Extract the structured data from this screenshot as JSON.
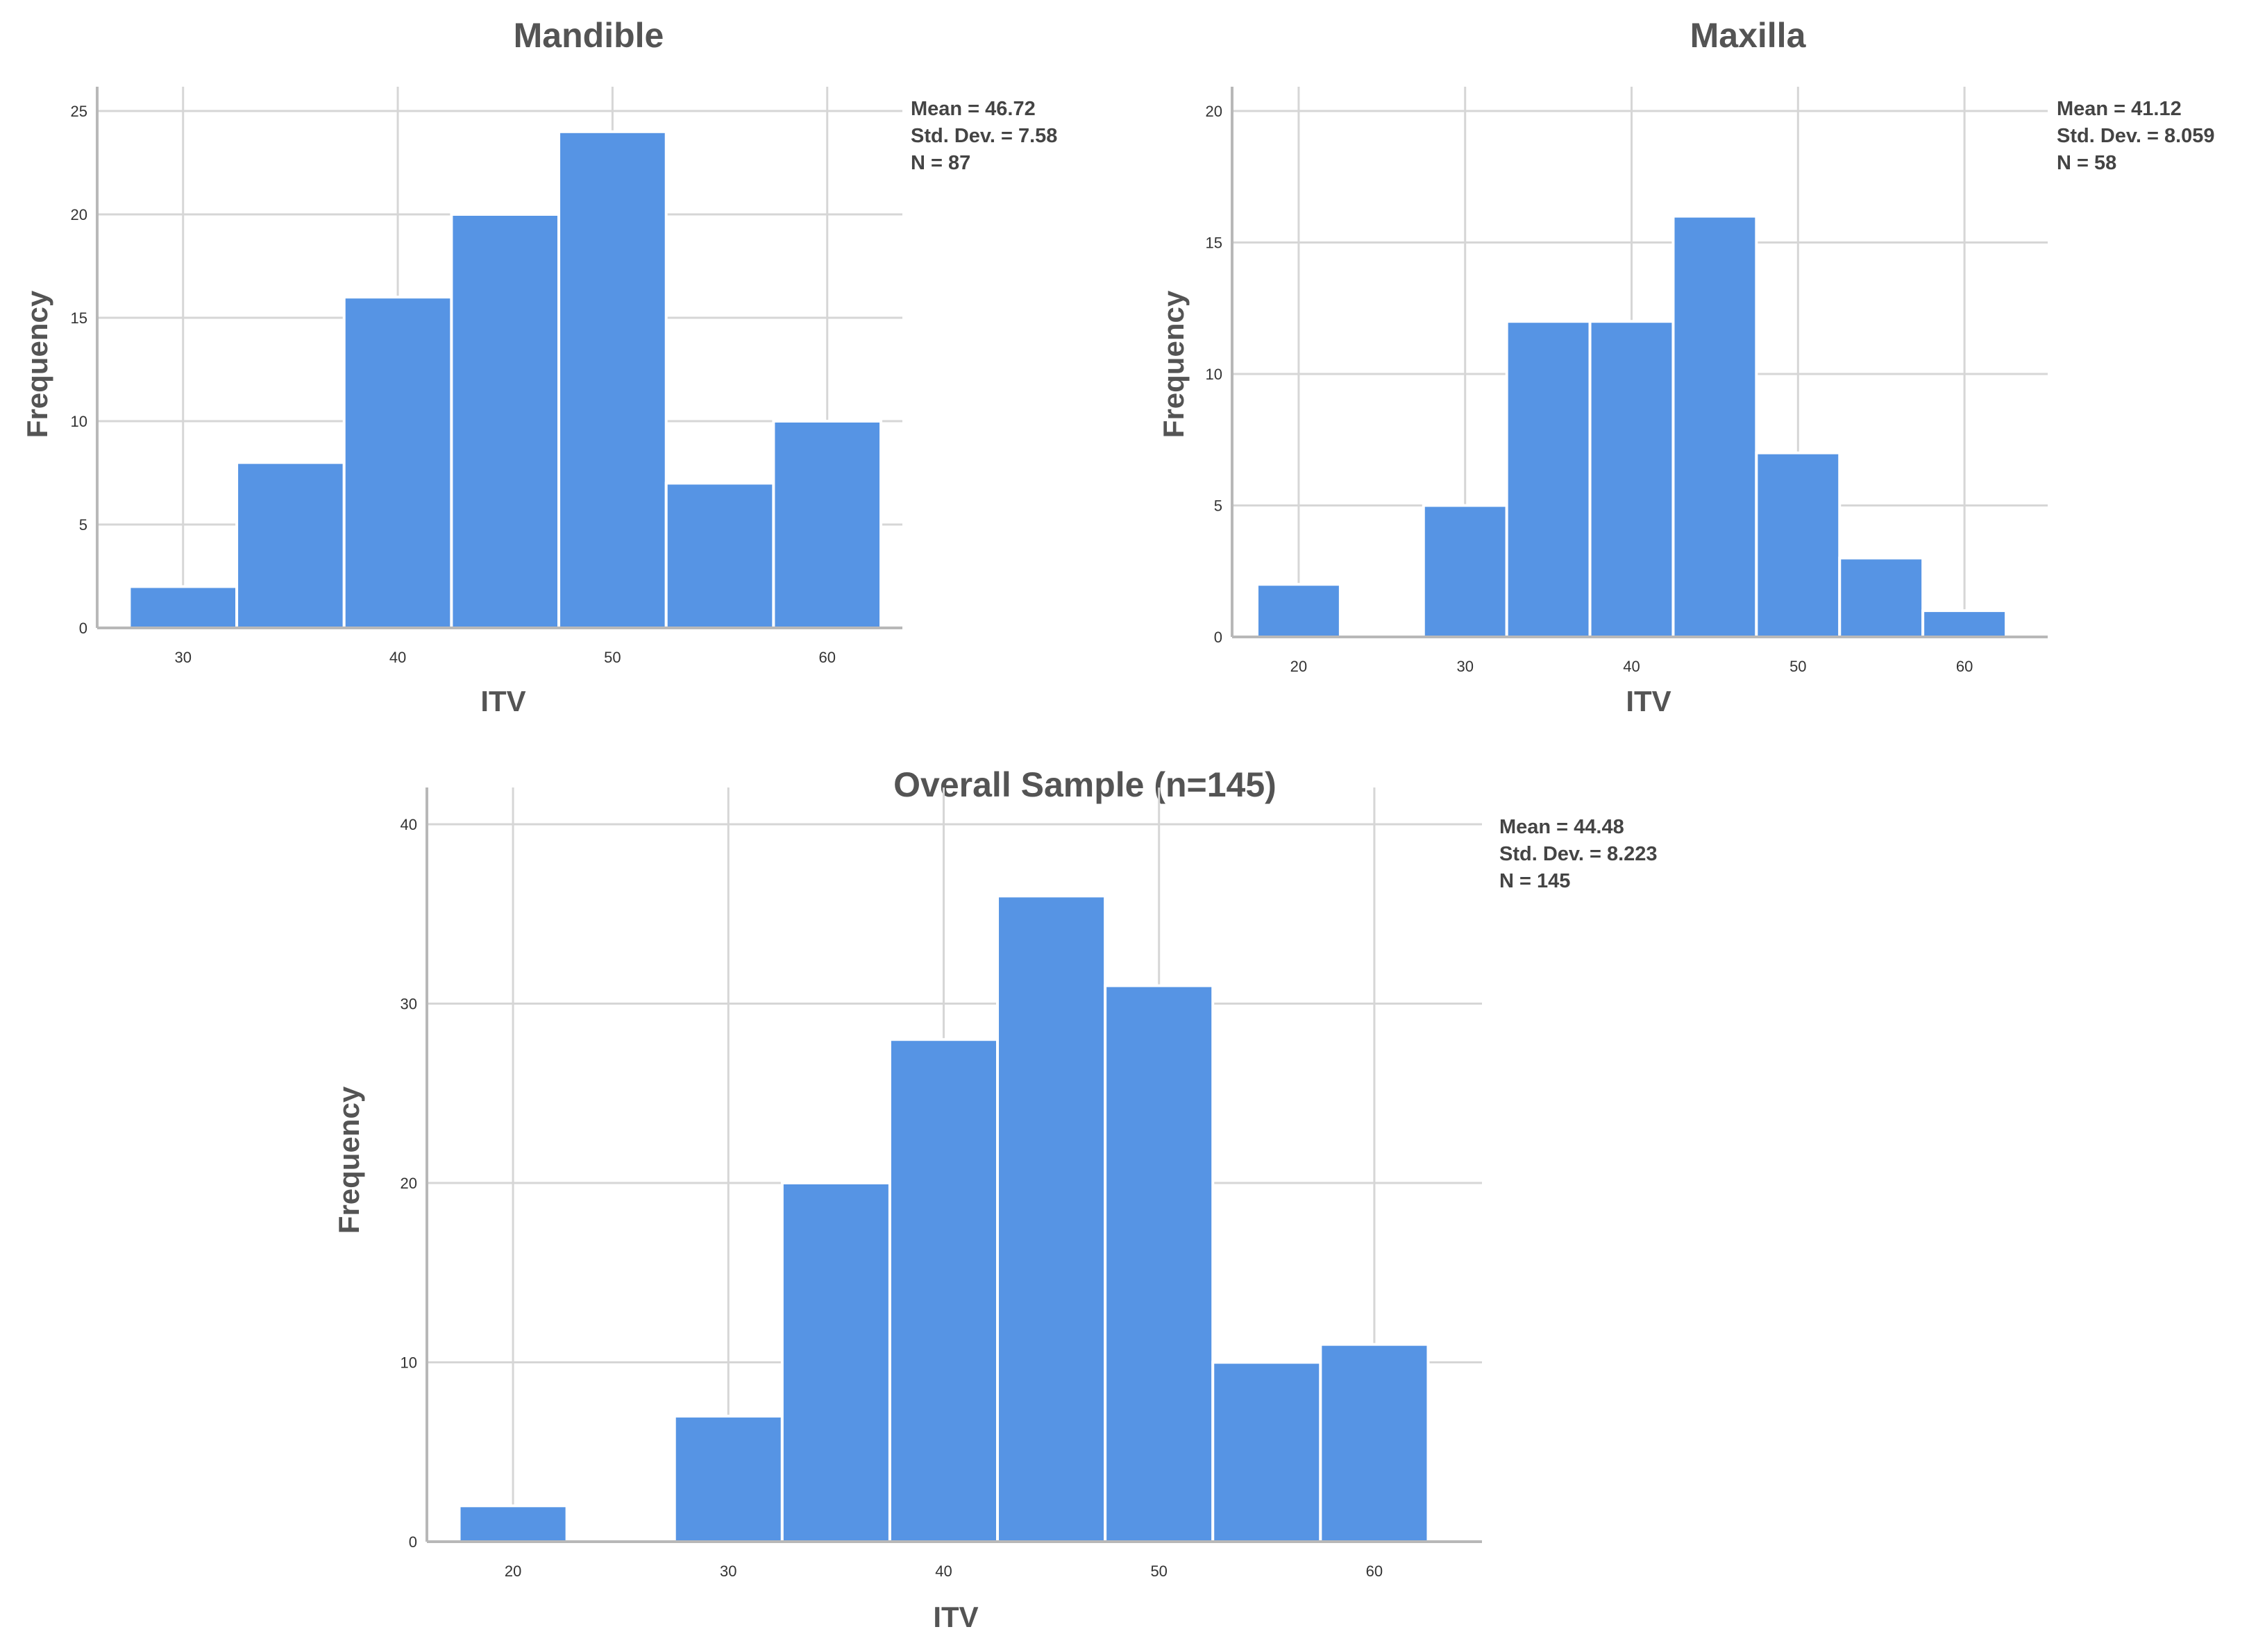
{
  "chart_data": [
    {
      "type": "bar",
      "subtype": "histogram",
      "title": "Mandible",
      "xlabel": "ITV",
      "ylabel": "Frequency",
      "xlim": [
        26,
        63.5
      ],
      "ylim": [
        0,
        25
      ],
      "xticks": [
        30,
        40,
        50,
        60
      ],
      "yticks": [
        0,
        5,
        10,
        15,
        20,
        25
      ],
      "grid": true,
      "bins": [
        [
          27.5,
          32.5
        ],
        [
          32.5,
          37.5
        ],
        [
          37.5,
          42.5
        ],
        [
          42.5,
          47.5
        ],
        [
          47.5,
          52.5
        ],
        [
          52.5,
          57.5
        ],
        [
          57.5,
          62.5
        ]
      ],
      "values": [
        2,
        8,
        16,
        20,
        24,
        7,
        10
      ],
      "stats": [
        "Mean = 46.72",
        "Std. Dev. = 7.58",
        "N = 87"
      ]
    },
    {
      "type": "bar",
      "subtype": "histogram",
      "title": "Maxilla",
      "xlabel": "ITV",
      "ylabel": "Frequency",
      "xlim": [
        16,
        65
      ],
      "ylim": [
        0,
        20
      ],
      "xticks": [
        20,
        30,
        40,
        50,
        60
      ],
      "yticks": [
        0,
        5,
        10,
        15,
        20
      ],
      "grid": true,
      "bins": [
        [
          17.5,
          22.5
        ],
        [
          22.5,
          27.5
        ],
        [
          27.5,
          32.5
        ],
        [
          32.5,
          37.5
        ],
        [
          37.5,
          42.5
        ],
        [
          42.5,
          47.5
        ],
        [
          47.5,
          52.5
        ],
        [
          52.5,
          57.5
        ],
        [
          57.5,
          62.5
        ]
      ],
      "values": [
        2,
        0,
        5,
        12,
        12,
        16,
        7,
        3,
        1
      ],
      "stats": [
        "Mean = 41.12",
        "Std. Dev. = 8.059",
        "N = 58"
      ]
    },
    {
      "type": "bar",
      "subtype": "histogram",
      "title": "Overall Sample (n=145)",
      "xlabel": "ITV",
      "ylabel": "Frequency",
      "xlim": [
        16,
        65
      ],
      "ylim": [
        0,
        40
      ],
      "xticks": [
        20,
        30,
        40,
        50,
        60
      ],
      "yticks": [
        0,
        10,
        20,
        30,
        40
      ],
      "grid": true,
      "bins": [
        [
          17.5,
          22.5
        ],
        [
          22.5,
          27.5
        ],
        [
          27.5,
          32.5
        ],
        [
          32.5,
          37.5
        ],
        [
          37.5,
          42.5
        ],
        [
          42.5,
          47.5
        ],
        [
          47.5,
          52.5
        ],
        [
          52.5,
          57.5
        ],
        [
          57.5,
          62.5
        ]
      ],
      "values": [
        2,
        0,
        7,
        20,
        28,
        36,
        31,
        10,
        11
      ],
      "stats": [
        "Mean = 44.48",
        "Std. Dev. = 8.223",
        "N = 145"
      ]
    }
  ]
}
